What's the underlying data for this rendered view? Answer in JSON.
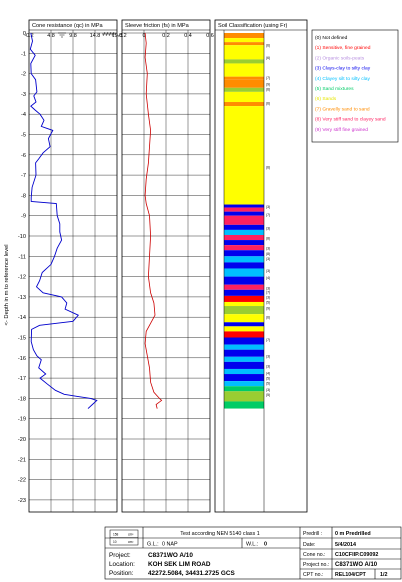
{
  "chart_data": [
    {
      "type": "line",
      "title": "Cone resistance (qc) in MPa",
      "x_ticks": [
        "-0.2",
        "4.8",
        "9.8",
        "14.8",
        "19.8"
      ],
      "xlim": [
        -0.2,
        19.8
      ],
      "ylabel": "<- Depth in m to reference level",
      "y_ticks": [
        "0",
        "-1",
        "-2",
        "-3",
        "-4",
        "-5",
        "-6",
        "-7",
        "-8",
        "-9",
        "-10",
        "-11",
        "-12",
        "-13",
        "-14",
        "-15",
        "-16",
        "-17",
        "-18",
        "-19",
        "-20",
        "-21",
        "-22",
        "-23"
      ],
      "ylim": [
        0,
        -23
      ],
      "series": [
        {
          "color": "#0000cc",
          "points": [
            [
              0.2,
              0
            ],
            [
              0.6,
              -0.4
            ],
            [
              0.1,
              -0.8
            ],
            [
              1.2,
              -1.1
            ],
            [
              0.2,
              -1.5
            ],
            [
              0.3,
              -2.0
            ],
            [
              1.3,
              -2.3
            ],
            [
              1.6,
              -2.9
            ],
            [
              0.9,
              -3.1
            ],
            [
              1.4,
              -3.4
            ],
            [
              0.2,
              -3.6
            ],
            [
              1.2,
              -3.8
            ],
            [
              2.3,
              -4.0
            ],
            [
              3.2,
              -4.3
            ],
            [
              2.6,
              -4.6
            ],
            [
              5.2,
              -4.8
            ],
            [
              4.2,
              -5.2
            ],
            [
              4.6,
              -5.6
            ],
            [
              3.0,
              -5.9
            ],
            [
              2.0,
              -6.2
            ],
            [
              1.3,
              -6.4
            ],
            [
              1.4,
              -7.0
            ],
            [
              0.5,
              -7.6
            ],
            [
              0.3,
              -8.1
            ],
            [
              0.3,
              -8.3
            ],
            [
              6.0,
              -8.4
            ],
            [
              6.2,
              -9.0
            ],
            [
              6.8,
              -9.4
            ],
            [
              6.8,
              -9.8
            ],
            [
              7.2,
              -10.2
            ],
            [
              6.2,
              -10.6
            ],
            [
              5.6,
              -11.0
            ],
            [
              4.8,
              -11.4
            ],
            [
              2.8,
              -11.8
            ],
            [
              2.2,
              -12.2
            ],
            [
              1.5,
              -12.5
            ],
            [
              3.0,
              -12.8
            ],
            [
              7.2,
              -13.0
            ],
            [
              8.4,
              -13.3
            ],
            [
              8.0,
              -13.6
            ],
            [
              11.0,
              -13.9
            ],
            [
              9.8,
              -14.2
            ],
            [
              2.2,
              -14.4
            ],
            [
              0.4,
              -14.6
            ],
            [
              0.3,
              -15.2
            ],
            [
              0.8,
              -15.6
            ],
            [
              1.6,
              -15.9
            ],
            [
              2.6,
              -16.1
            ],
            [
              2.0,
              -16.5
            ],
            [
              3.6,
              -16.8
            ],
            [
              2.3,
              -17.0
            ],
            [
              4.0,
              -17.3
            ],
            [
              5.8,
              -17.6
            ],
            [
              7.8,
              -17.8
            ],
            [
              10.8,
              -17.9
            ],
            [
              13.8,
              -18.0
            ],
            [
              15.2,
              -18.1
            ],
            [
              14.2,
              -18.3
            ],
            [
              13.2,
              -18.5
            ]
          ]
        }
      ]
    },
    {
      "type": "line",
      "title": "Sleeve friction (fs) in MPa",
      "x_ticks": [
        "-0.2",
        "0",
        "0.2",
        "0.4",
        "0.6"
      ],
      "xlim": [
        -0.2,
        0.6
      ],
      "series": [
        {
          "color": "#cc0000",
          "points": [
            [
              0.01,
              0
            ],
            [
              0.02,
              -0.5
            ],
            [
              0.01,
              -1.2
            ],
            [
              0.03,
              -2.0
            ],
            [
              0.02,
              -3.0
            ],
            [
              0.04,
              -4.0
            ],
            [
              0.06,
              -4.8
            ],
            [
              0.05,
              -5.6
            ],
            [
              0.04,
              -6.4
            ],
            [
              0.02,
              -7.2
            ],
            [
              0.01,
              -8.0
            ],
            [
              0.02,
              -8.4
            ],
            [
              0.05,
              -9.0
            ],
            [
              0.06,
              -10.0
            ],
            [
              0.05,
              -11.0
            ],
            [
              0.04,
              -12.0
            ],
            [
              0.06,
              -12.8
            ],
            [
              0.09,
              -13.3
            ],
            [
              0.1,
              -13.9
            ],
            [
              0.06,
              -14.3
            ],
            [
              0.02,
              -14.7
            ],
            [
              0.01,
              -15.3
            ],
            [
              0.03,
              -15.9
            ],
            [
              0.05,
              -16.5
            ],
            [
              0.06,
              -17.2
            ],
            [
              0.09,
              -17.7
            ],
            [
              0.14,
              -18.0
            ],
            [
              0.16,
              -18.1
            ],
            [
              0.11,
              -18.3
            ],
            [
              0.12,
              -18.5
            ]
          ]
        }
      ]
    }
  ],
  "soil_panel": {
    "title": "Soil Classification (using Fr)",
    "colors": {
      "0": "#ffffff",
      "1": "#ff0000",
      "2": "#b890e0",
      "3": "#0000ee",
      "4": "#00bfff",
      "5": "#00cc66",
      "6": "#ffff00",
      "7": "#ff8c00",
      "8": "#ff2060",
      "9": "#9acd32"
    },
    "layers": [
      {
        "from": 0,
        "to": 0.25,
        "cls": "7"
      },
      {
        "from": 0.25,
        "to": 0.45,
        "cls": "6"
      },
      {
        "from": 0.45,
        "to": 0.6,
        "cls": "7"
      },
      {
        "from": 0.6,
        "to": 1.3,
        "cls": "6"
      },
      {
        "from": 1.3,
        "to": 1.5,
        "cls": "9"
      },
      {
        "from": 1.5,
        "to": 2.15,
        "cls": "6"
      },
      {
        "from": 2.15,
        "to": 2.3,
        "cls": "7"
      },
      {
        "from": 2.3,
        "to": 2.7,
        "cls": "7"
      },
      {
        "from": 2.7,
        "to": 2.9,
        "cls": "9"
      },
      {
        "from": 2.9,
        "to": 3.4,
        "cls": "6"
      },
      {
        "from": 3.4,
        "to": 3.6,
        "cls": "7"
      },
      {
        "from": 3.6,
        "to": 8.45,
        "cls": "6"
      },
      {
        "from": 8.45,
        "to": 8.6,
        "cls": "3"
      },
      {
        "from": 8.6,
        "to": 8.8,
        "cls": "8"
      },
      {
        "from": 8.8,
        "to": 9.0,
        "cls": "3"
      },
      {
        "from": 9.0,
        "to": 9.45,
        "cls": "8"
      },
      {
        "from": 9.45,
        "to": 9.7,
        "cls": "3"
      },
      {
        "from": 9.7,
        "to": 9.95,
        "cls": "4"
      },
      {
        "from": 9.95,
        "to": 10.2,
        "cls": "8"
      },
      {
        "from": 10.2,
        "to": 10.45,
        "cls": "3"
      },
      {
        "from": 10.45,
        "to": 10.7,
        "cls": "8"
      },
      {
        "from": 10.7,
        "to": 11.0,
        "cls": "3"
      },
      {
        "from": 11.0,
        "to": 11.3,
        "cls": "4"
      },
      {
        "from": 11.3,
        "to": 11.6,
        "cls": "3"
      },
      {
        "from": 11.6,
        "to": 12.0,
        "cls": "4"
      },
      {
        "from": 12.0,
        "to": 12.4,
        "cls": "3"
      },
      {
        "from": 12.4,
        "to": 12.65,
        "cls": "8"
      },
      {
        "from": 12.65,
        "to": 12.95,
        "cls": "3"
      },
      {
        "from": 12.95,
        "to": 13.25,
        "cls": "1"
      },
      {
        "from": 13.25,
        "to": 13.45,
        "cls": "6"
      },
      {
        "from": 13.45,
        "to": 13.85,
        "cls": "9"
      },
      {
        "from": 13.85,
        "to": 14.25,
        "cls": "6"
      },
      {
        "from": 14.25,
        "to": 14.45,
        "cls": "3"
      },
      {
        "from": 14.45,
        "to": 14.7,
        "cls": "6"
      },
      {
        "from": 14.7,
        "to": 15.0,
        "cls": "1"
      },
      {
        "from": 15.0,
        "to": 15.35,
        "cls": "3"
      },
      {
        "from": 15.35,
        "to": 15.6,
        "cls": "4"
      },
      {
        "from": 15.6,
        "to": 15.95,
        "cls": "3"
      },
      {
        "from": 15.95,
        "to": 16.2,
        "cls": "4"
      },
      {
        "from": 16.2,
        "to": 16.55,
        "cls": "3"
      },
      {
        "from": 16.55,
        "to": 16.8,
        "cls": "4"
      },
      {
        "from": 16.8,
        "to": 17.15,
        "cls": "3"
      },
      {
        "from": 17.15,
        "to": 17.4,
        "cls": "4"
      },
      {
        "from": 17.4,
        "to": 17.65,
        "cls": "5"
      },
      {
        "from": 17.65,
        "to": 18.15,
        "cls": "9"
      },
      {
        "from": 18.15,
        "to": 18.5,
        "cls": "5"
      }
    ],
    "marks": [
      {
        "d": 0.6,
        "label": "(6)"
      },
      {
        "d": 1.2,
        "label": "(6)"
      },
      {
        "d": 2.2,
        "label": "(7)"
      },
      {
        "d": 2.5,
        "label": "(9)"
      },
      {
        "d": 2.75,
        "label": "(6)"
      },
      {
        "d": 3.45,
        "label": "(6)"
      },
      {
        "d": 6.6,
        "label": "(6)"
      },
      {
        "d": 8.55,
        "label": "(3)"
      },
      {
        "d": 8.95,
        "label": "(7)"
      },
      {
        "d": 9.6,
        "label": "(3)"
      },
      {
        "d": 10.1,
        "label": "(8)"
      },
      {
        "d": 10.6,
        "label": "(3)"
      },
      {
        "d": 10.85,
        "label": "(8)"
      },
      {
        "d": 11.1,
        "label": "(3)"
      },
      {
        "d": 11.7,
        "label": "(3)"
      },
      {
        "d": 12.05,
        "label": "(4)"
      },
      {
        "d": 12.55,
        "label": "(3)"
      },
      {
        "d": 12.75,
        "label": "(7)"
      },
      {
        "d": 13.0,
        "label": "(3)"
      },
      {
        "d": 13.25,
        "label": "(5)"
      },
      {
        "d": 13.55,
        "label": "(9)"
      },
      {
        "d": 14.0,
        "label": "(6)"
      },
      {
        "d": 15.1,
        "label": "(7)"
      },
      {
        "d": 15.9,
        "label": "(3)"
      },
      {
        "d": 16.4,
        "label": "(3)"
      },
      {
        "d": 16.75,
        "label": "(4)"
      },
      {
        "d": 17.0,
        "label": "(5)"
      },
      {
        "d": 17.25,
        "label": "(5)"
      },
      {
        "d": 17.55,
        "label": "(3)"
      },
      {
        "d": 17.8,
        "label": "(5)"
      }
    ]
  },
  "legend": [
    {
      "code": "0",
      "text": "(0) Not defined",
      "color": "#000000"
    },
    {
      "code": "1",
      "text": "(1) Sensitive, fine grained",
      "color": "#ff0000"
    },
    {
      "code": "2",
      "text": "(2) Organic soils-peats",
      "color": "#b890e0"
    },
    {
      "code": "3",
      "text": "(3) Clays-clay to silty clay",
      "color": "#0000ee"
    },
    {
      "code": "4",
      "text": "(4) Clayey silt to silty clay",
      "color": "#00bfff"
    },
    {
      "code": "5",
      "text": "(5) Sand mixtures",
      "color": "#00cc66"
    },
    {
      "code": "6",
      "text": "(6) Sands",
      "color": "#e6e600"
    },
    {
      "code": "7",
      "text": "(7) Gravelly sand to sand",
      "color": "#ff8c00"
    },
    {
      "code": "8",
      "text": "(8) Very stiff sand to clayey sand",
      "color": "#ff2060"
    },
    {
      "code": "9",
      "text": "(9) Very stiff fine grained",
      "color": "#cc33cc"
    }
  ],
  "footer": {
    "test_standard": "Test according NEN 5140 class 1",
    "gl_label": "G.L.:",
    "gl_value": "0 NAP",
    "wl_label": "W.L.:",
    "wl_value": "0",
    "project_label": "Project:",
    "project_value": "C8371WO A/10",
    "location_label": "Location:",
    "location_value": "KOH SEK LIM ROAD",
    "position_label": "Position:",
    "position_value": "42272.5084, 34431.2725 GCS",
    "predrill_label": "Predrill :",
    "predrill_value": "0 m Predrilled",
    "date_label": "Date:",
    "date_value": "5/4/2014",
    "cone_label": "Cone no.:",
    "cone_value": "C10CFIIP.C09092",
    "projno_label": "Project no.:",
    "projno_value": "C8371WO A/10",
    "cpt_label": "CPT no.:",
    "cpt_value": "REL104/CPT",
    "page_value": "1/2",
    "logo_top": "158",
    "logo_top_unit": "cm²",
    "logo_bot": "10",
    "logo_bot_unit": "cm²"
  }
}
